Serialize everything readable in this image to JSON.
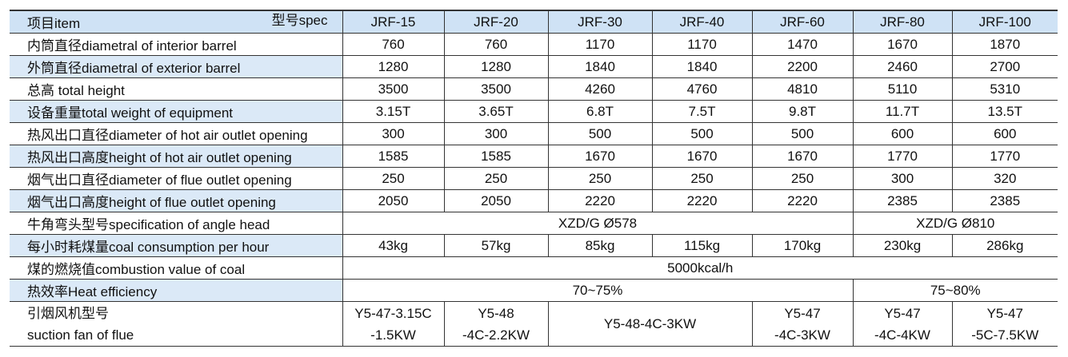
{
  "header": {
    "item": "项目item",
    "spec": "型号spec",
    "models": [
      "JRF-15",
      "JRF-20",
      "JRF-30",
      "JRF-40",
      "JRF-60",
      "JRF-80",
      "JRF-100"
    ]
  },
  "rows": [
    {
      "label": "内筒直径diametral of interior barrel",
      "cells": [
        "760",
        "760",
        "1170",
        "1170",
        "1470",
        "1670",
        "1870"
      ]
    },
    {
      "label": "外筒直径diametral of exterior barrel",
      "cells": [
        "1280",
        "1280",
        "1840",
        "1840",
        "2200",
        "2460",
        "2700"
      ]
    },
    {
      "label": "总高 total height",
      "cells": [
        "3500",
        "3500",
        "4260",
        "4760",
        "4810",
        "5110",
        "5310"
      ]
    },
    {
      "label": "设备重量total  weight of equipment",
      "cells": [
        "3.15T",
        "3.65T",
        "6.8T",
        "7.5T",
        "9.8T",
        "11.7T",
        "13.5T"
      ]
    },
    {
      "label": "热风出口直径diameter of hot air outlet opening",
      "cells": [
        "300",
        "300",
        "500",
        "500",
        "500",
        "600",
        "600"
      ]
    },
    {
      "label": "热风出口高度height of hot air outlet opening",
      "cells": [
        "1585",
        "1585",
        "1670",
        "1670",
        "1670",
        "1770",
        "1770"
      ]
    },
    {
      "label": "烟气出口直径diameter of flue outlet opening",
      "cells": [
        "250",
        "250",
        "250",
        "250",
        "250",
        "300",
        "320"
      ]
    },
    {
      "label": "烟气出口高度height of flue outlet opening",
      "cells": [
        "2050",
        "2050",
        "2220",
        "2220",
        "2220",
        "2385",
        "2385"
      ]
    },
    {
      "label": "牛角弯头型号specification of angle head",
      "cells": [
        "XZD/G Ø578",
        "XZD/G Ø810"
      ]
    },
    {
      "label": "每小时耗煤量coal consumption per hour",
      "cells": [
        "43kg",
        "57kg",
        "85kg",
        "115kg",
        "170kg",
        "230kg",
        "286kg"
      ]
    },
    {
      "label": "煤的燃烧值combustion value of coal",
      "cells": [
        "5000kcal/h"
      ]
    },
    {
      "label": "热效率Heat efficiency",
      "cells": [
        "70~75%",
        "75~80%"
      ]
    },
    {
      "label": [
        "引烟风机型号",
        "suction fan of flue"
      ],
      "cells": [
        [
          "Y5-47-3.15C",
          "-1.5KW"
        ],
        [
          "Y5-48",
          "-4C-2.2KW"
        ],
        [
          "Y5-48-4C-3KW"
        ],
        [
          "Y5-47",
          "-4C-3KW"
        ],
        [
          "Y5-47",
          "-4C-4KW"
        ],
        [
          "Y5-47",
          "-5C-7.5KW"
        ]
      ]
    }
  ]
}
